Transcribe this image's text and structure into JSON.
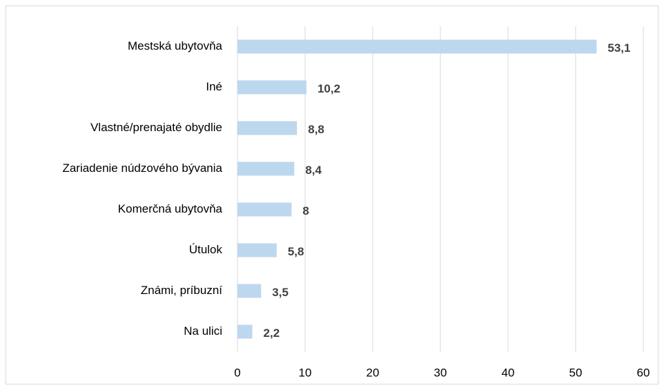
{
  "chart_data": {
    "type": "bar",
    "orientation": "horizontal",
    "categories": [
      "Mestská ubytovňa",
      "Iné",
      "Vlastné/prenajaté obydlie",
      "Zariadenie núdzového bývania",
      "Komerčná ubytovňa",
      "Útulok",
      "Známi, príbuzní",
      "Na ulici"
    ],
    "values": [
      53.1,
      10.2,
      8.8,
      8.4,
      8,
      5.8,
      3.5,
      2.2
    ],
    "value_labels": [
      "53,1",
      "10,2",
      "8,8",
      "8,4",
      "8",
      "5,8",
      "3,5",
      "2,2"
    ],
    "color": "#bdd7ee",
    "xlim": [
      0,
      60
    ],
    "xticks": [
      0,
      10,
      20,
      30,
      40,
      50,
      60
    ],
    "grid": true
  }
}
